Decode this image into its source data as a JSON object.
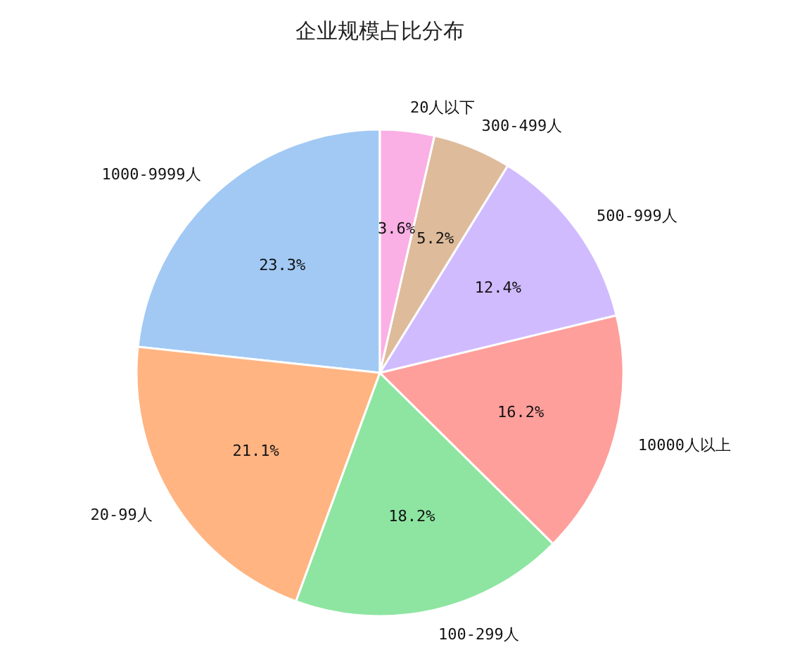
{
  "chart_data": {
    "type": "pie",
    "title": "企业规模占比分布",
    "categories": [
      "1000-9999人",
      "20-99人",
      "100-299人",
      "10000人以上",
      "500-999人",
      "300-499人",
      "20人以下"
    ],
    "values": [
      23.3,
      21.1,
      18.2,
      16.2,
      12.4,
      5.2,
      3.6
    ],
    "colors": [
      "#a1c9f4",
      "#ffb482",
      "#8de5a1",
      "#ff9f9b",
      "#d0bbff",
      "#debb9b",
      "#fab0e4"
    ],
    "value_labels": [
      "23.3%",
      "21.1%",
      "18.2%",
      "16.2%",
      "12.4%",
      "5.2%",
      "3.6%"
    ]
  }
}
